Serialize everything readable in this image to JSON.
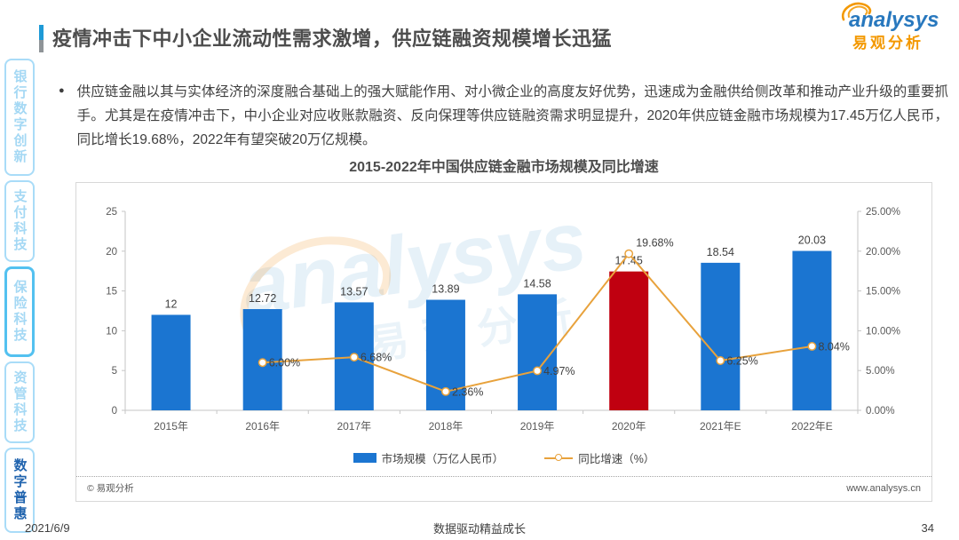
{
  "page": {
    "title": "疫情冲击下中小企业流动性需求激增，供应链融资规模增长迅猛",
    "date": "2021/6/9",
    "slogan": "数据驱动精益成长",
    "page_number": "34"
  },
  "logo": {
    "brand": "analysys",
    "brand_cn": "易观分析"
  },
  "sidebar": {
    "items": [
      {
        "label": "银行数字创新",
        "active": false
      },
      {
        "label": "支付科技",
        "active": false
      },
      {
        "label": "保险科技",
        "active": false
      },
      {
        "label": "资管科技",
        "active": false
      },
      {
        "label": "数字普惠",
        "active": true
      }
    ]
  },
  "body_text": "供应链金融以其与实体经济的深度融合基础上的强大赋能作用、对小微企业的高度友好优势，迅速成为金融供给侧改革和推动产业升级的重要抓手。尤其是在疫情冲击下，中小企业对应收账款融资、反向保理等供应链融资需求明显提升，2020年供应链金融市场规模为17.45万亿人民币，同比增长19.68%，2022年有望突破20万亿规模。",
  "chart_footer": {
    "copyright": "© 易观分析",
    "website": "www.analysys.cn"
  },
  "chart_data": {
    "type": "bar+line",
    "title": "2015-2022年中国供应链金融市场规模及同比增速",
    "categories": [
      "2015年",
      "2016年",
      "2017年",
      "2018年",
      "2019年",
      "2020年",
      "2021年E",
      "2022年E"
    ],
    "series": [
      {
        "name": "市场规模（万亿人民币）",
        "type": "bar",
        "values": [
          12,
          12.72,
          13.57,
          13.89,
          14.58,
          17.45,
          18.54,
          20.03
        ],
        "labels": [
          "12",
          "12.72",
          "13.57",
          "13.89",
          "14.58",
          "17.45",
          "18.54",
          "20.03"
        ],
        "highlight_index": 5
      },
      {
        "name": "同比增速（%）",
        "type": "line",
        "values": [
          null,
          6.0,
          6.68,
          2.36,
          4.97,
          19.68,
          6.25,
          8.04
        ],
        "labels": [
          null,
          "6.00%",
          "6.68%",
          "2.36%",
          "4.97%",
          "19.68%",
          "6.25%",
          "8.04%"
        ]
      }
    ],
    "left_axis": {
      "min": 0,
      "max": 25,
      "ticks": [
        "0",
        "5",
        "10",
        "15",
        "20",
        "25"
      ]
    },
    "right_axis": {
      "min": 0,
      "max": 25,
      "ticks": [
        "0.00%",
        "5.00%",
        "10.00%",
        "15.00%",
        "20.00%",
        "25.00%"
      ]
    },
    "legend": [
      "市场规模（万亿人民币）",
      "同比增速（%）"
    ],
    "colors": {
      "bar": "#1b75d1",
      "bar_highlight": "#c00010",
      "line": "#e8a23c",
      "axis": "#c6c6c6",
      "tick_text": "#595959",
      "data_label": "#404040"
    },
    "watermark": {
      "text": "analysys",
      "text_cn": "易观分析"
    }
  }
}
